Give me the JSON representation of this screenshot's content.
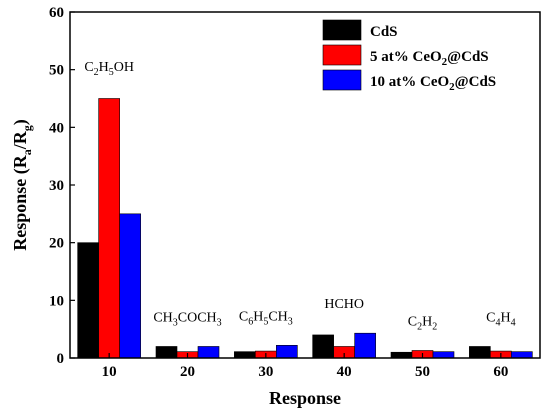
{
  "chart_data": {
    "type": "bar",
    "categories": [
      "10",
      "20",
      "30",
      "40",
      "50",
      "60"
    ],
    "xlabel": "Response",
    "ylabel_parts": [
      "Response (R",
      "a",
      "/R",
      "g",
      ")"
    ],
    "ylim": [
      0,
      60
    ],
    "yticks": [
      0,
      10,
      20,
      30,
      40,
      50,
      60
    ],
    "grid": false,
    "legend_position": "top-right",
    "series": [
      {
        "name_parts": [
          "CdS"
        ],
        "color": "#000000",
        "values": [
          20,
          2,
          1.1,
          4,
          1,
          2
        ]
      },
      {
        "name_parts": [
          "5 at% CeO",
          "2",
          "@CdS"
        ],
        "color": "#ff0000",
        "values": [
          45,
          1.1,
          1.2,
          2,
          1.3,
          1.2
        ]
      },
      {
        "name_parts": [
          "10 at% CeO",
          "2",
          "@CdS"
        ],
        "color": "#0000ff",
        "values": [
          25,
          2,
          2.2,
          4.3,
          1.1,
          1.1
        ]
      }
    ],
    "annotations": [
      {
        "category": "10",
        "parts": [
          "C",
          "2",
          "H",
          "5",
          "OH"
        ]
      },
      {
        "category": "20",
        "parts": [
          "CH",
          "3",
          "COCH",
          "3"
        ]
      },
      {
        "category": "30",
        "parts": [
          "C",
          "6",
          "H",
          "5",
          "CH",
          "3"
        ]
      },
      {
        "category": "40",
        "parts": [
          "HCHO"
        ]
      },
      {
        "category": "50",
        "parts": [
          "C",
          "2",
          "H",
          "2"
        ]
      },
      {
        "category": "60",
        "parts": [
          "C",
          "4",
          "H",
          "4"
        ]
      }
    ]
  }
}
